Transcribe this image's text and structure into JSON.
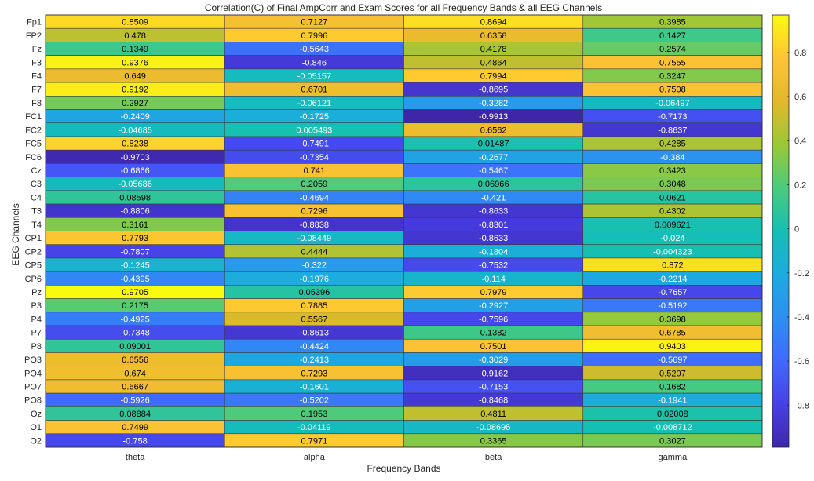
{
  "chart_data": {
    "type": "heatmap",
    "title": "Correlation(C) of Final AmpCorr and Exam Scores for all Frequency Bands & all EEG Channels",
    "xlabel": "Frequency Bands",
    "ylabel": "EEG Channels",
    "x_categories": [
      "theta",
      "alpha",
      "beta",
      "gamma"
    ],
    "y_categories": [
      "Fp1",
      "FP2",
      "Fz",
      "F3",
      "F4",
      "F7",
      "F8",
      "FC1",
      "FC2",
      "FC5",
      "FC6",
      "Cz",
      "C3",
      "C4",
      "T3",
      "T4",
      "CP1",
      "CP2",
      "CP5",
      "CP6",
      "Pz",
      "P3",
      "P4",
      "P7",
      "P8",
      "PO3",
      "PO4",
      "PO7",
      "PO8",
      "Oz",
      "O1",
      "O2"
    ],
    "values": [
      [
        0.8509,
        0.7127,
        0.8694,
        0.3985
      ],
      [
        0.478,
        0.7996,
        0.6358,
        0.1427
      ],
      [
        0.1349,
        -0.5643,
        0.4178,
        0.2574
      ],
      [
        0.9376,
        -0.846,
        0.4864,
        0.7555
      ],
      [
        0.649,
        -0.05157,
        0.7994,
        0.3247
      ],
      [
        0.9192,
        0.6701,
        -0.8695,
        0.7508
      ],
      [
        0.2927,
        -0.06121,
        -0.3282,
        -0.06497
      ],
      [
        -0.2409,
        -0.1725,
        -0.9913,
        -0.7173
      ],
      [
        -0.04685,
        0.005493,
        0.6562,
        -0.8637
      ],
      [
        0.8238,
        -0.7491,
        0.01487,
        0.4285
      ],
      [
        -0.9703,
        -0.7354,
        -0.2677,
        -0.384
      ],
      [
        -0.6866,
        0.741,
        -0.5467,
        0.3423
      ],
      [
        -0.05686,
        0.2059,
        0.06966,
        0.3048
      ],
      [
        0.08598,
        -0.4694,
        -0.421,
        0.0621
      ],
      [
        -0.8806,
        0.7296,
        -0.8633,
        0.4302
      ],
      [
        0.3161,
        -0.8838,
        -0.8301,
        0.009621
      ],
      [
        0.7793,
        -0.08449,
        -0.8633,
        -0.024
      ],
      [
        -0.7807,
        0.4444,
        -0.1804,
        -0.004323
      ],
      [
        -0.1245,
        -0.322,
        -0.7532,
        0.872
      ],
      [
        -0.4395,
        -0.1976,
        -0.114,
        -0.2214
      ],
      [
        0.9705,
        0.05396,
        0.7979,
        -0.7657
      ],
      [
        0.2175,
        0.7885,
        -0.2927,
        -0.5192
      ],
      [
        -0.4925,
        0.5567,
        -0.7596,
        0.3698
      ],
      [
        -0.7348,
        -0.8613,
        0.1382,
        0.6785
      ],
      [
        0.09001,
        -0.4424,
        0.7501,
        0.9403
      ],
      [
        0.6556,
        -0.2413,
        -0.3029,
        -0.5697
      ],
      [
        0.674,
        0.7293,
        -0.9162,
        0.5207
      ],
      [
        0.6667,
        -0.1601,
        -0.7153,
        0.1682
      ],
      [
        -0.5926,
        -0.5202,
        -0.8468,
        -0.1941
      ],
      [
        0.08884,
        0.1953,
        0.4811,
        0.02008
      ],
      [
        0.7499,
        -0.04119,
        -0.08695,
        -0.008712
      ],
      [
        -0.758,
        0.7971,
        0.3365,
        0.3027
      ]
    ],
    "value_labels": [
      [
        "0.8509",
        "0.7127",
        "0.8694",
        "0.3985"
      ],
      [
        "0.478",
        "0.7996",
        "0.6358",
        "0.1427"
      ],
      [
        "0.1349",
        "-0.5643",
        "0.4178",
        "0.2574"
      ],
      [
        "0.9376",
        "-0.846",
        "0.4864",
        "0.7555"
      ],
      [
        "0.649",
        "-0.05157",
        "0.7994",
        "0.3247"
      ],
      [
        "0.9192",
        "0.6701",
        "-0.8695",
        "0.7508"
      ],
      [
        "0.2927",
        "-0.06121",
        "-0.3282",
        "-0.06497"
      ],
      [
        "-0.2409",
        "-0.1725",
        "-0.9913",
        "-0.7173"
      ],
      [
        "-0.04685",
        "0.005493",
        "0.6562",
        "-0.8637"
      ],
      [
        "0.8238",
        "-0.7491",
        "0.01487",
        "0.4285"
      ],
      [
        "-0.9703",
        "-0.7354",
        "-0.2677",
        "-0.384"
      ],
      [
        "-0.6866",
        "0.741",
        "-0.5467",
        "0.3423"
      ],
      [
        "-0.05686",
        "0.2059",
        "0.06966",
        "0.3048"
      ],
      [
        "0.08598",
        "-0.4694",
        "-0.421",
        "0.0621"
      ],
      [
        "-0.8806",
        "0.7296",
        "-0.8633",
        "0.4302"
      ],
      [
        "0.3161",
        "-0.8838",
        "-0.8301",
        "0.009621"
      ],
      [
        "0.7793",
        "-0.08449",
        "-0.8633",
        "-0.024"
      ],
      [
        "-0.7807",
        "0.4444",
        "-0.1804",
        "-0.004323"
      ],
      [
        "-0.1245",
        "-0.322",
        "-0.7532",
        "0.872"
      ],
      [
        "-0.4395",
        "-0.1976",
        "-0.114",
        "-0.2214"
      ],
      [
        "0.9705",
        "0.05396",
        "0.7979",
        "-0.7657"
      ],
      [
        "0.2175",
        "0.7885",
        "-0.2927",
        "-0.5192"
      ],
      [
        "-0.4925",
        "0.5567",
        "-0.7596",
        "0.3698"
      ],
      [
        "-0.7348",
        "-0.8613",
        "0.1382",
        "0.6785"
      ],
      [
        "0.09001",
        "-0.4424",
        "0.7501",
        "0.9403"
      ],
      [
        "0.6556",
        "-0.2413",
        "-0.3029",
        "-0.5697"
      ],
      [
        "0.674",
        "0.7293",
        "-0.9162",
        "0.5207"
      ],
      [
        "0.6667",
        "-0.1601",
        "-0.7153",
        "0.1682"
      ],
      [
        "-0.5926",
        "-0.5202",
        "-0.8468",
        "-0.1941"
      ],
      [
        "0.08884",
        "0.1953",
        "0.4811",
        "0.02008"
      ],
      [
        "0.7499",
        "-0.04119",
        "-0.08695",
        "-0.008712"
      ],
      [
        "-0.758",
        "0.7971",
        "0.3365",
        "0.3027"
      ]
    ],
    "colormap": "parula",
    "color_range": [
      -0.9913,
      0.9705
    ],
    "colorbar": {
      "ticks": [
        -0.8,
        -0.6,
        -0.4,
        -0.2,
        0,
        0.2,
        0.4,
        0.6,
        0.8
      ],
      "tick_labels": [
        "-0.8",
        "-0.6",
        "-0.4",
        "-0.2",
        "0",
        "0.2",
        "0.4",
        "0.6",
        "0.8"
      ],
      "placement": "right"
    },
    "grid": true
  }
}
